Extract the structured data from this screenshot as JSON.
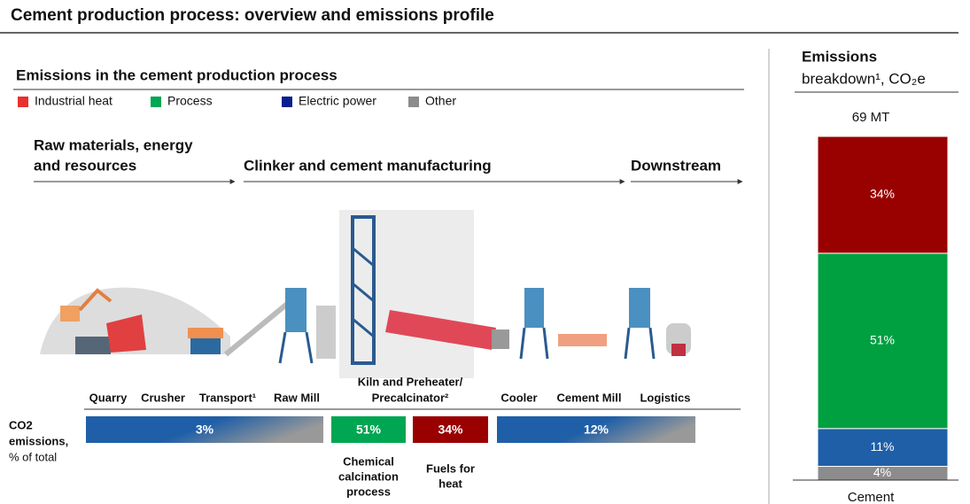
{
  "title": "Cement production process: overview and emissions profile",
  "process": {
    "title": "Emissions in the cement production process",
    "legend": [
      {
        "name": "Industrial heat",
        "color": "#e8312f"
      },
      {
        "name": "Process",
        "color": "#00a651"
      },
      {
        "name": "Electric power",
        "color": "#0a1f8f"
      },
      {
        "name": "Other",
        "color": "#8c8c8c"
      }
    ],
    "stages": [
      "Raw materials, energy",
      "and resources",
      "Clinker and cement manufacturing",
      "Downstream"
    ],
    "steps": [
      "Quarry",
      "Crusher",
      "Transport¹",
      "Raw Mill",
      "Kiln and Preheater/",
      "Precalcinator²",
      "Cooler",
      "Cement Mill",
      "Logistics"
    ],
    "emissions_label": [
      "CO2",
      "emissions,",
      "% of total"
    ],
    "emission_bars": [
      {
        "label": "3%"
      },
      {
        "label": "51%",
        "note": [
          "Chemical",
          "calcination",
          "process"
        ]
      },
      {
        "label": "34%",
        "note": [
          "Fuels for",
          "heat"
        ]
      },
      {
        "label": "12%"
      }
    ]
  },
  "chart_data": {
    "type": "bar",
    "title": [
      "Emissions",
      "breakdown¹, CO₂e"
    ],
    "total_label": "69 MT",
    "categories": [
      "Cement"
    ],
    "stacked": true,
    "ylim": [
      0,
      100
    ],
    "series": [
      {
        "name": "Other",
        "color": "#8c8c8c",
        "values": [
          4
        ],
        "value_labels": [
          "4%"
        ]
      },
      {
        "name": "Electric power",
        "color": "#1f5fa8",
        "values": [
          11
        ],
        "value_labels": [
          "11%"
        ]
      },
      {
        "name": "Process",
        "color": "#00a040",
        "values": [
          51
        ],
        "value_labels": [
          "51%"
        ]
      },
      {
        "name": "Industrial heat",
        "color": "#990000",
        "values": [
          34
        ],
        "value_labels": [
          "34%"
        ]
      }
    ]
  }
}
